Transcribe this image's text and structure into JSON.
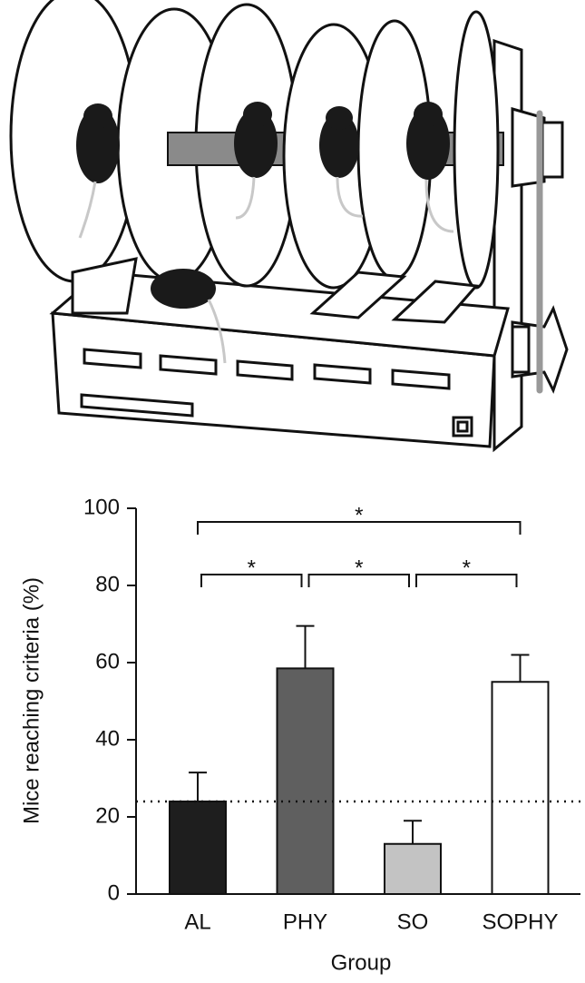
{
  "chart_data": {
    "type": "bar",
    "categories": [
      "AL",
      "PHY",
      "SO",
      "SOPHY"
    ],
    "values": [
      24,
      58.5,
      13,
      55
    ],
    "errors": [
      7.5,
      11,
      6,
      7
    ],
    "colors": [
      "#1e1e1e",
      "#5f5f5f",
      "#c3c3c3",
      "#ffffff"
    ],
    "ylabel": "Mice reaching criteria (%)",
    "xlabel": "Group",
    "ylim": [
      0,
      100
    ],
    "yticks": [
      0,
      20,
      40,
      60,
      80,
      100
    ],
    "reference_line": 24,
    "brackets": [
      {
        "from": "AL",
        "to": "SOPHY",
        "label": "*"
      },
      {
        "from": "AL",
        "to": "PHY",
        "label": "*"
      },
      {
        "from": "PHY",
        "to": "SO",
        "label": "*"
      },
      {
        "from": "SO",
        "to": "SOPHY",
        "label": "*"
      }
    ]
  }
}
